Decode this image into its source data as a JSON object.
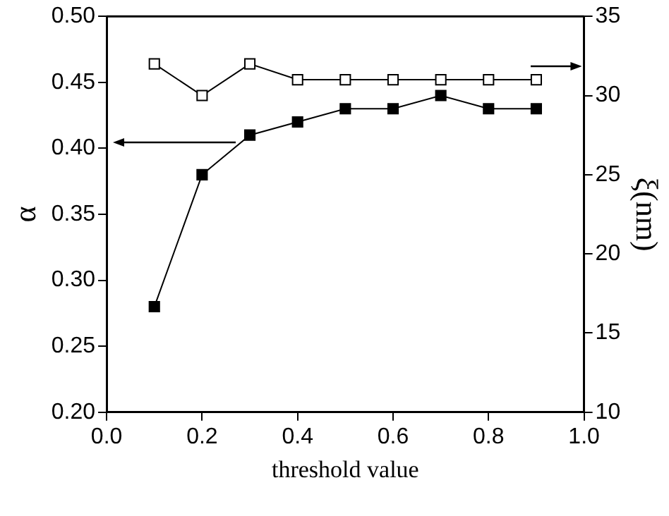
{
  "chart_data": {
    "type": "line",
    "xlabel": "threshold value",
    "ylabel": "α",
    "y2label": "ξ(nm)",
    "x": [
      0.1,
      0.2,
      0.3,
      0.4,
      0.5,
      0.6,
      0.7,
      0.8,
      0.9
    ],
    "series": [
      {
        "color": "#000000",
        "values": [
          0.28,
          0.38,
          0.41,
          0.42,
          0.43,
          0.43,
          0.44,
          0.43,
          0.43
        ]
      },
      {
        "color": "#000000",
        "axis": "y2",
        "values": [
          32,
          30,
          32,
          31,
          31,
          31,
          31,
          31,
          31
        ]
      }
    ],
    "xlim": [
      0,
      1
    ],
    "xticks": [
      {
        "value": 0,
        "label": "0.0"
      },
      {
        "value": 0.2,
        "label": "0.2"
      },
      {
        "value": 0.4,
        "label": "0.4"
      },
      {
        "value": 0.6,
        "label": "0.6"
      },
      {
        "value": 0.8,
        "label": "0.8"
      },
      {
        "value": 1,
        "label": "1.0"
      }
    ],
    "ylim": [
      0.2,
      0.5
    ],
    "yticks": [
      {
        "value": 0.2,
        "label": "0.20"
      },
      {
        "value": 0.25,
        "label": "0.25"
      },
      {
        "value": 0.3,
        "label": "0.30"
      },
      {
        "value": 0.35,
        "label": "0.35"
      },
      {
        "value": 0.4,
        "label": "0.40"
      },
      {
        "value": 0.45,
        "label": "0.45"
      },
      {
        "value": 0.5,
        "label": "0.50"
      }
    ],
    "y2lim": [
      10,
      35
    ],
    "y2ticks": [
      10,
      15,
      20,
      25,
      30,
      35
    ],
    "grid": false,
    "legend": false,
    "marker": "square",
    "line_style": "solid"
  }
}
